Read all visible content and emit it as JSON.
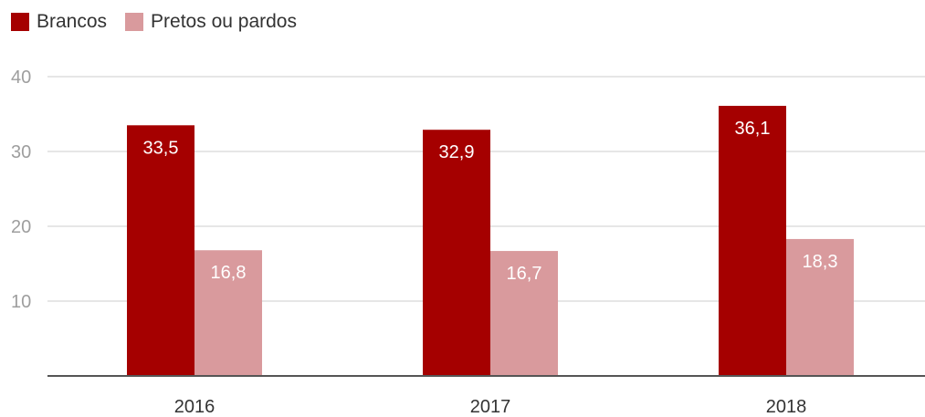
{
  "chart_data": {
    "type": "bar",
    "categories": [
      "2016",
      "2017",
      "2018"
    ],
    "series": [
      {
        "name": "Brancos",
        "color": "#a50000",
        "label_color": "#ffffff",
        "values": [
          33.5,
          32.9,
          36.1
        ]
      },
      {
        "name": "Pretos ou pardos",
        "color": "#d99a9d",
        "label_color": "#ffffff",
        "values": [
          16.8,
          16.7,
          18.3
        ]
      }
    ],
    "data_labels": [
      [
        "33,5",
        "32,9",
        "36,1"
      ],
      [
        "16,8",
        "16,7",
        "18,3"
      ]
    ],
    "yticks": [
      10,
      20,
      30,
      40
    ],
    "ytick_labels": [
      "10",
      "20",
      "30",
      "40"
    ],
    "ylim": [
      0,
      40
    ],
    "legend_position": "top-left",
    "grid": true,
    "title": "",
    "xlabel": "",
    "ylabel": ""
  }
}
